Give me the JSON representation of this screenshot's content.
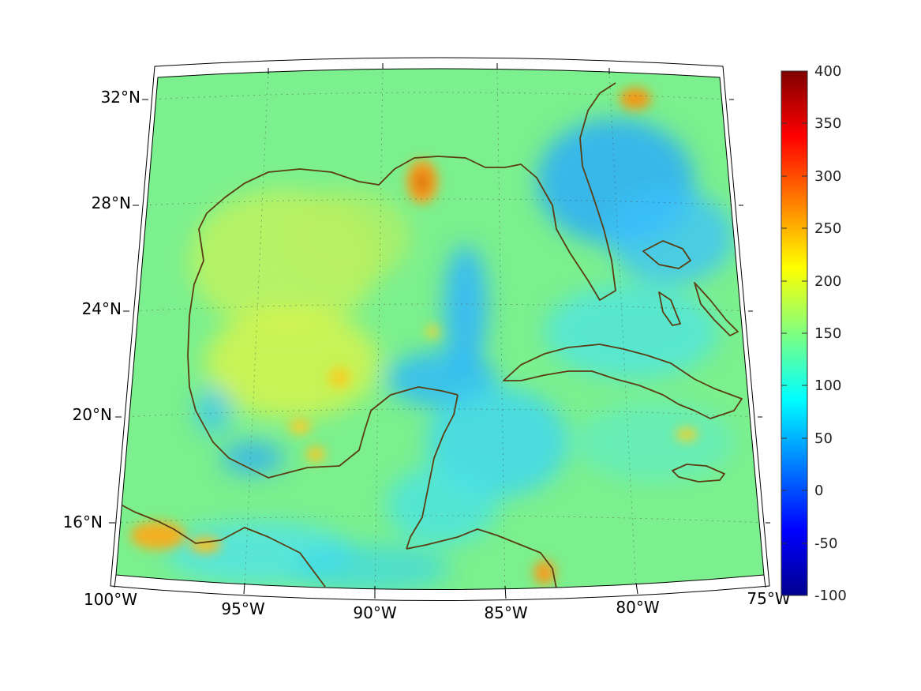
{
  "map": {
    "lat_labels": [
      "32°N",
      "28°N",
      "24°N",
      "20°N",
      "16°N"
    ],
    "lon_labels": [
      "100°W",
      "95°W",
      "90°W",
      "85°W",
      "80°W",
      "75°W"
    ],
    "extent": {
      "lon_min": -100,
      "lon_max": -75,
      "lat_min": 14,
      "lat_max": 32.7
    },
    "projection": "conic",
    "grid": true,
    "coastline_color": "#5a3d12"
  },
  "colorbar": {
    "ticks": [
      "400",
      "350",
      "300",
      "250",
      "200",
      "150",
      "100",
      "50",
      "0",
      "-50",
      "-100"
    ],
    "min": -100,
    "max": 400,
    "colormap": "jet"
  }
}
